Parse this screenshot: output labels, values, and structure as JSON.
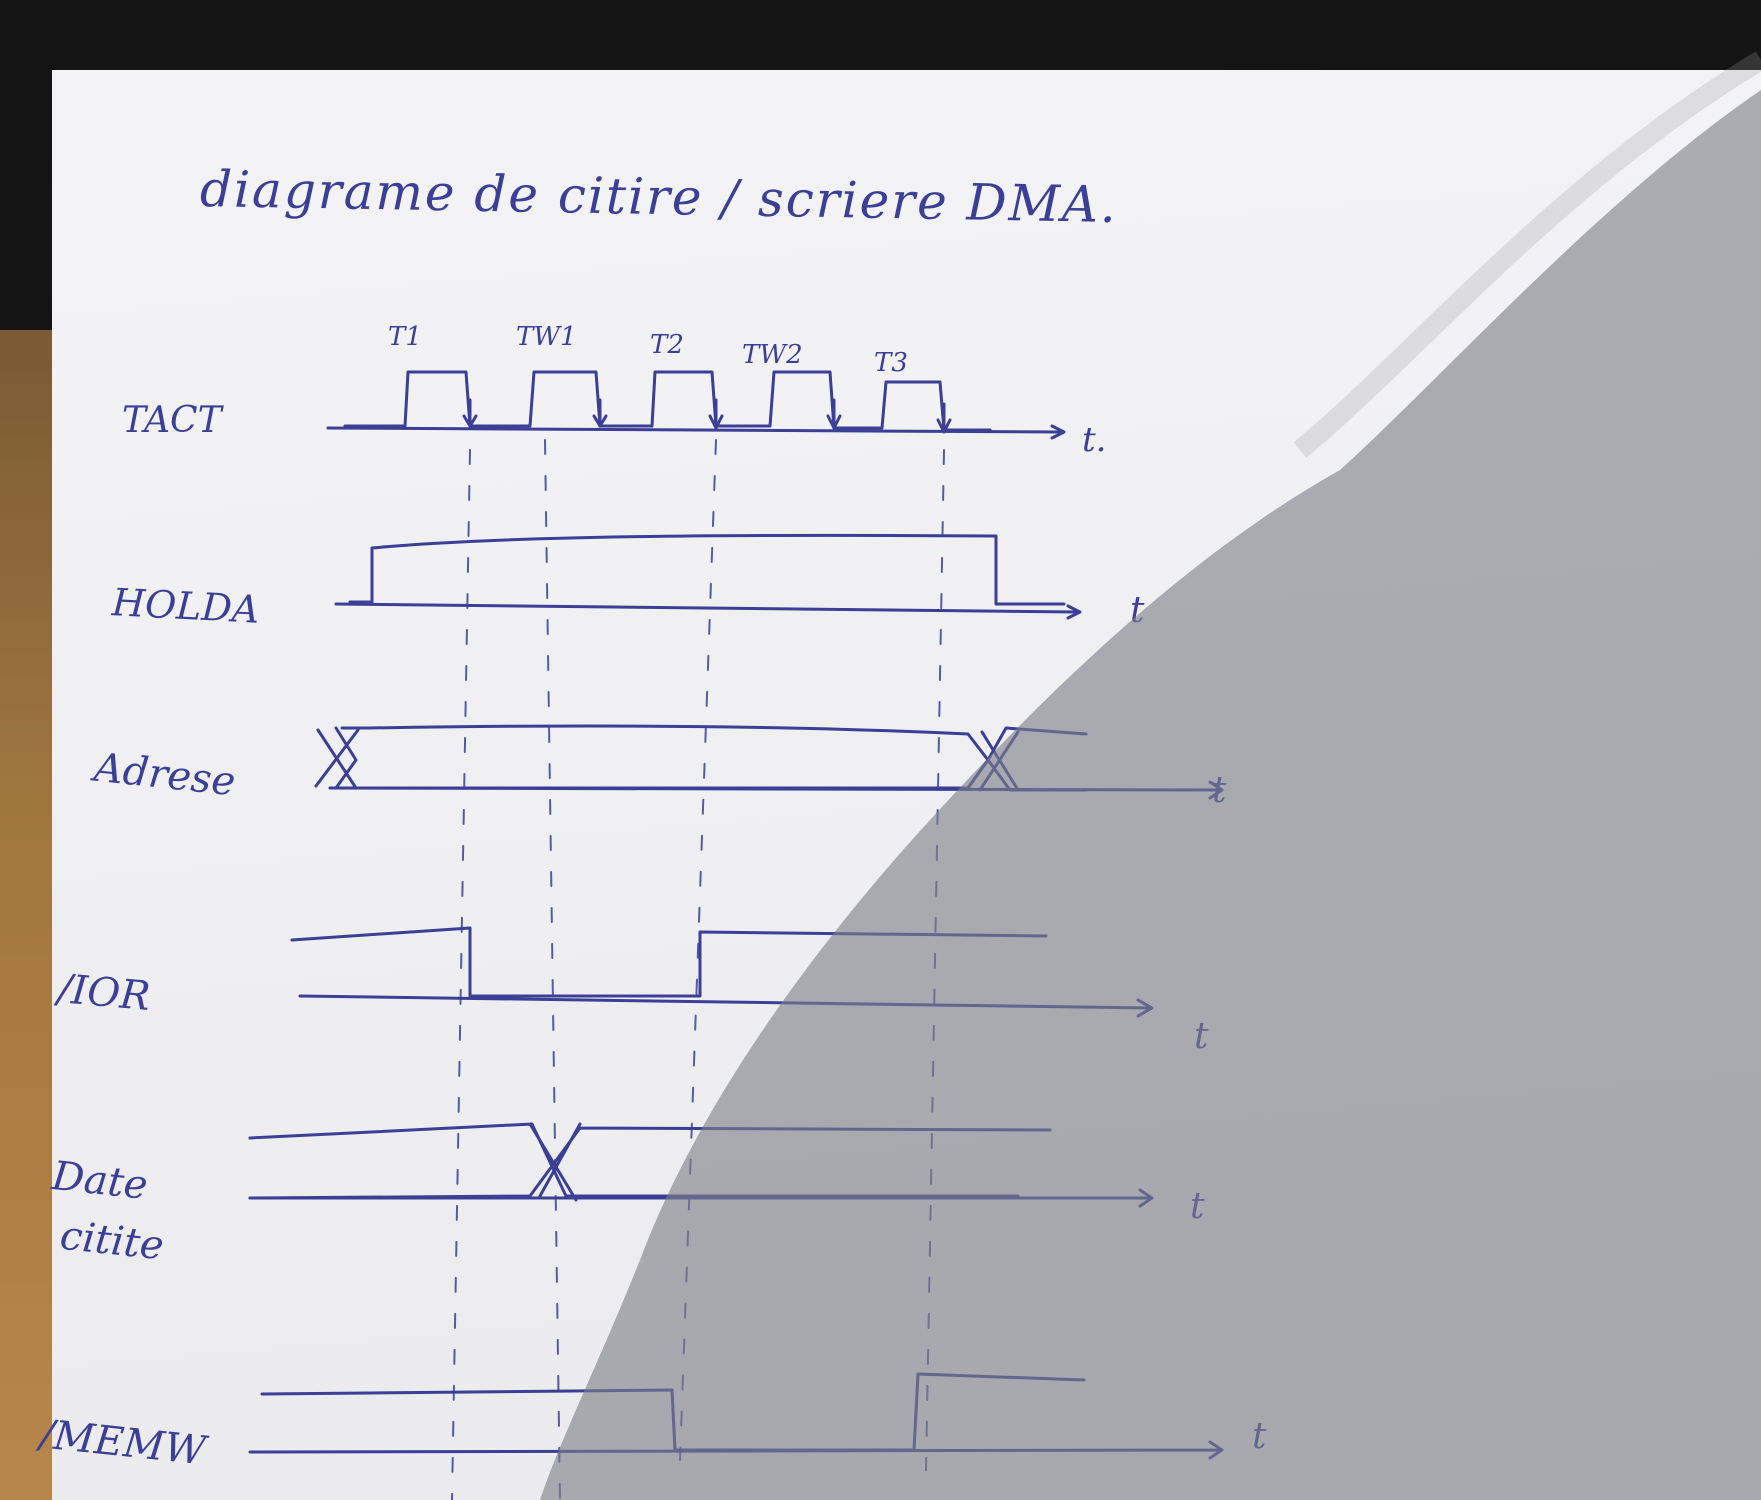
{
  "title": "diagrame de citire / scriere DMA.",
  "clock": {
    "labels": [
      "T1",
      "TW1",
      "T2",
      "TW2",
      "T3"
    ]
  },
  "signals": [
    {
      "name": "TACT",
      "axis_label": "t."
    },
    {
      "name": "HOLDA",
      "axis_label": "t"
    },
    {
      "name": "Adrese",
      "axis_label": "t"
    },
    {
      "name": "/IOR",
      "axis_label": "t"
    },
    {
      "name": "Date",
      "name2": "citite",
      "axis_label": "t"
    },
    {
      "name": "/MEMW",
      "axis_label": "t"
    }
  ],
  "colors": {
    "ink": "#3b3f96",
    "paper": "#f0f0f3",
    "shadow": "#8e8f96"
  }
}
